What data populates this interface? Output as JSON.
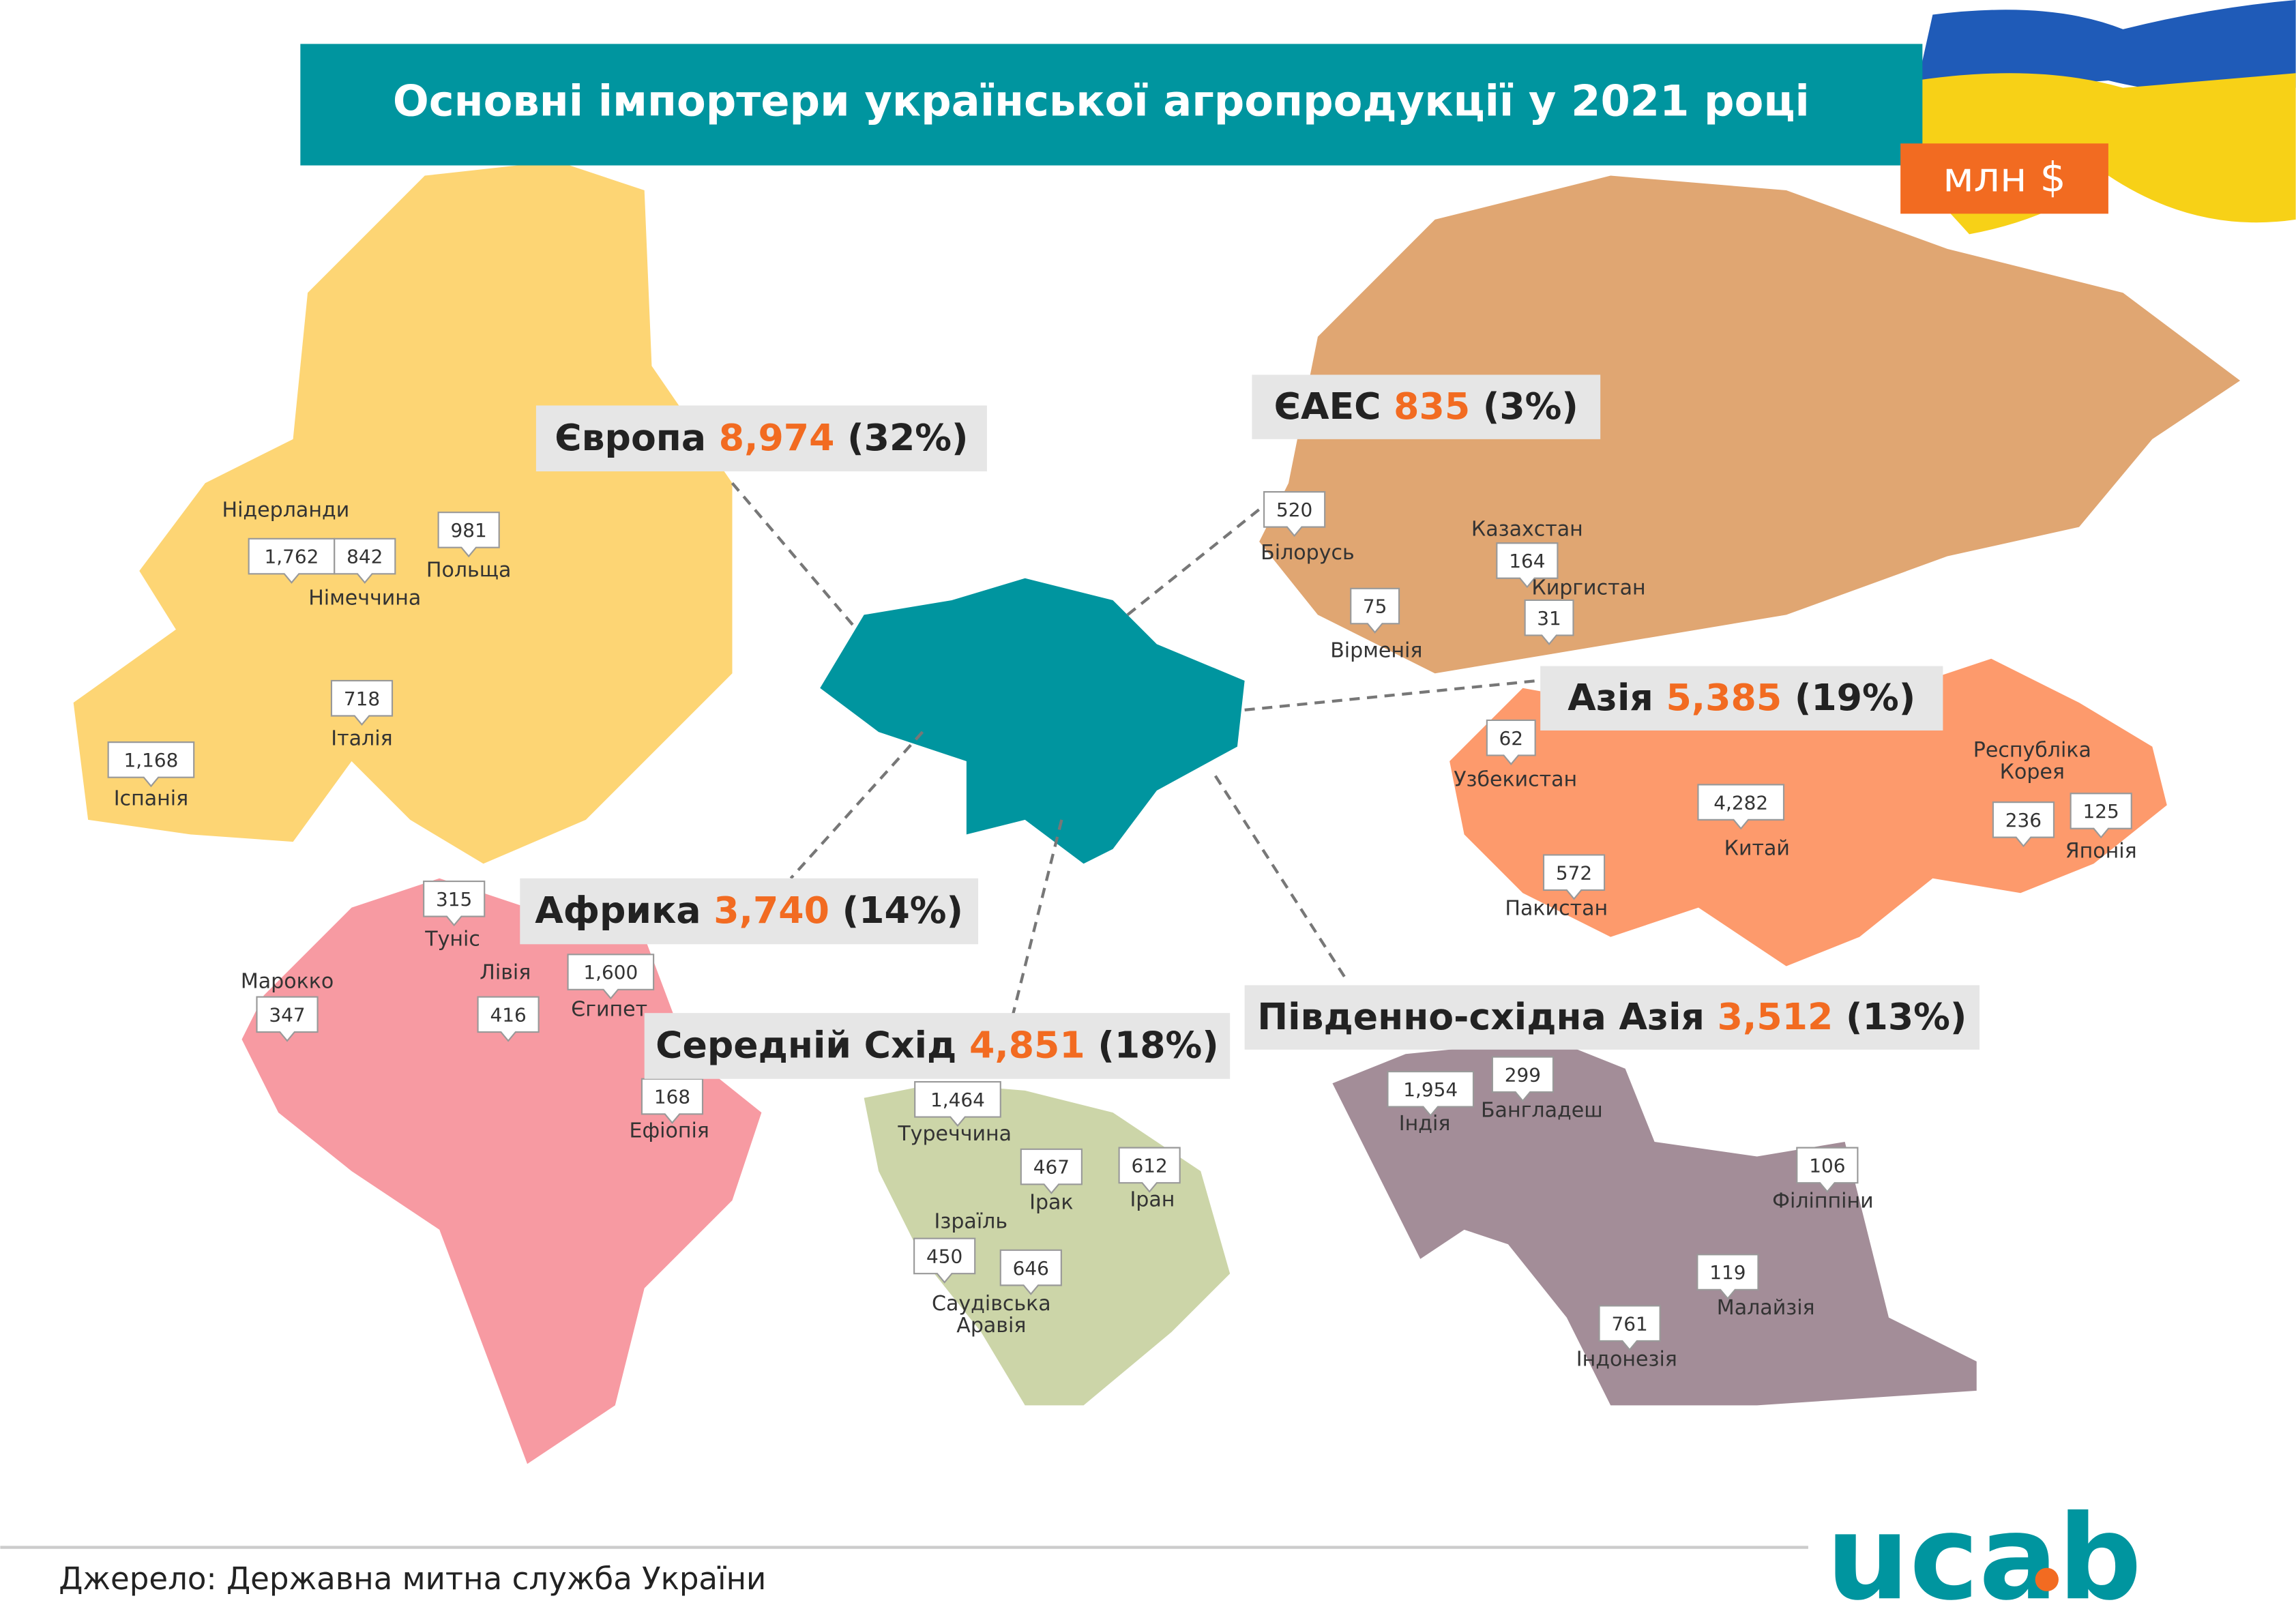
{
  "header": {
    "title": "Основні імпортери української агропродукції у 2021 році",
    "unit": "млн $"
  },
  "regions": [
    {
      "name": "Європа",
      "value": "8,974",
      "share": "(32%)",
      "countries": [
        {
          "name": "Нідерланди",
          "value": "1,762"
        },
        {
          "name": "Німеччина",
          "value": "842"
        },
        {
          "name": "Польща",
          "value": "981"
        },
        {
          "name": "Італія",
          "value": "718"
        },
        {
          "name": "Іспанія",
          "value": "1,168"
        }
      ]
    },
    {
      "name": "ЄАЕС",
      "value": "835",
      "share": "(3%)",
      "countries": [
        {
          "name": "Білорусь",
          "value": "520"
        },
        {
          "name": "Казахстан",
          "value": "164"
        },
        {
          "name": "Киргистан",
          "value": "31"
        },
        {
          "name": "Вірменія",
          "value": "75"
        }
      ]
    },
    {
      "name": "Азія",
      "value": "5,385",
      "share": "(19%)",
      "countries": [
        {
          "name": "Узбекистан",
          "value": "62"
        },
        {
          "name": "Китай",
          "value": "4,282"
        },
        {
          "name": "Пакистан",
          "value": "572"
        },
        {
          "name": [
            "Республіка",
            "Корея"
          ],
          "value": "236"
        },
        {
          "name": "Японія",
          "value": "125"
        }
      ]
    },
    {
      "name": "Африка",
      "value": "3,740",
      "share": "(14%)",
      "countries": [
        {
          "name": "Туніс",
          "value": "315"
        },
        {
          "name": "Марокко",
          "value": "347"
        },
        {
          "name": "Лівія",
          "value": "416"
        },
        {
          "name": "Єгипет",
          "value": "1,600"
        },
        {
          "name": "Ефіопія",
          "value": "168"
        }
      ]
    },
    {
      "name": "Середній Схід",
      "value": "4,851",
      "share": "(18%)",
      "countries": [
        {
          "name": "Туреччина",
          "value": "1,464"
        },
        {
          "name": "Ірак",
          "value": "467"
        },
        {
          "name": "Іран",
          "value": "612"
        },
        {
          "name": "Ізраїль",
          "value": "450"
        },
        {
          "name": [
            "Саудівська",
            "Аравія"
          ],
          "value": "646"
        }
      ]
    },
    {
      "name": "Південно-східна Азія",
      "value": "3,512",
      "share": "(13%)",
      "countries": [
        {
          "name": "Індія",
          "value": "1,954"
        },
        {
          "name": "Бангладеш",
          "value": "299"
        },
        {
          "name": "Філіппіни",
          "value": "106"
        },
        {
          "name": "Малайзія",
          "value": "119"
        },
        {
          "name": "Індонезія",
          "value": "761"
        }
      ]
    }
  ],
  "footer": {
    "source": "Джерело: Державна митна служба України",
    "logo": "ucab"
  }
}
